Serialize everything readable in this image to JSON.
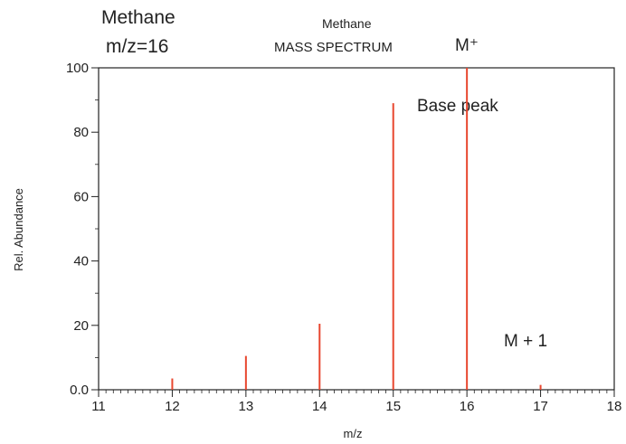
{
  "header": {
    "compound": "Methane",
    "mz_label": "m/z=16",
    "spectrum_compound": "Methane",
    "spectrum_title": "MASS SPECTRUM"
  },
  "annotations": {
    "molecular_ion": "M⁺",
    "base_peak": "Base peak",
    "isotope_peak": "M + 1"
  },
  "chart_data": {
    "type": "bar",
    "title": "Methane MASS SPECTRUM",
    "xlabel": "m/z",
    "ylabel": "Rel. Abundance",
    "xlim": [
      11,
      18
    ],
    "ylim": [
      0,
      100
    ],
    "x_ticks": [
      "11",
      "12",
      "13",
      "14",
      "15",
      "16",
      "17",
      "18"
    ],
    "y_ticks": [
      "0.0",
      "20",
      "40",
      "60",
      "80",
      "100"
    ],
    "x": [
      12,
      13,
      14,
      15,
      16,
      17
    ],
    "values": [
      3.5,
      10.5,
      20.5,
      89,
      100,
      1.5
    ],
    "bar_color": "#e8472f",
    "grid": false
  }
}
